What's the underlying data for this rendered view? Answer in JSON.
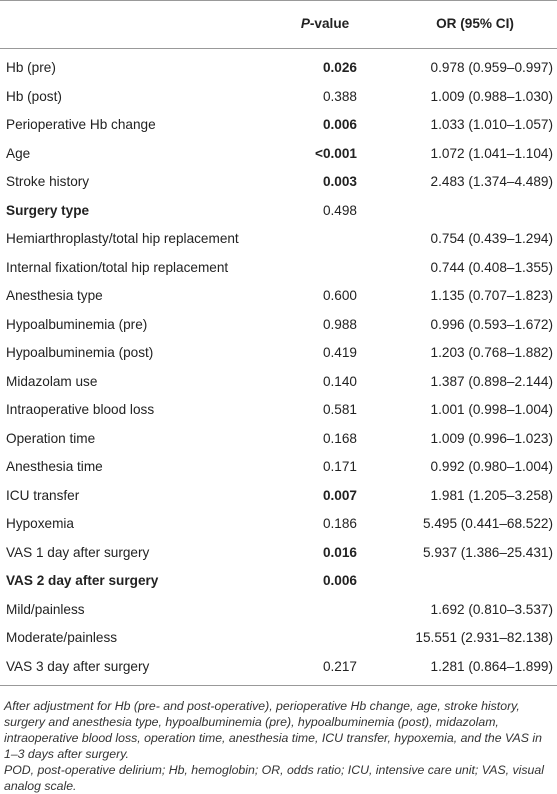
{
  "table": {
    "header": [
      "P-value",
      "OR (95% CI)"
    ],
    "rows": [
      {
        "label": "Hb (pre)",
        "p": "0.026",
        "p_bold": true,
        "or": "0.978 (0.959–0.997)"
      },
      {
        "label": "Hb (post)",
        "p": "0.388",
        "or": "1.009 (0.988–1.030)"
      },
      {
        "label": "Perioperative Hb change",
        "p": "0.006",
        "p_bold": true,
        "or": "1.033 (1.010–1.057)"
      },
      {
        "label": "Age",
        "p": "<0.001",
        "p_bold": true,
        "or": "1.072 (1.041–1.104)"
      },
      {
        "label": "Stroke history",
        "p": "0.003",
        "p_bold": true,
        "or": "2.483 (1.374–4.489)"
      },
      {
        "label": "Surgery type",
        "label_bold": true,
        "p": "0.498"
      },
      {
        "label": "Hemiarthroplasty/total hip replacement",
        "or": "0.754 (0.439–1.294)"
      },
      {
        "label": "Internal fixation/total hip replacement",
        "or": "0.744 (0.408–1.355)"
      },
      {
        "label": "Anesthesia type",
        "p": "0.600",
        "or": "1.135 (0.707–1.823)"
      },
      {
        "label": "Hypoalbuminemia (pre)",
        "p": "0.988",
        "or": "0.996 (0.593–1.672)"
      },
      {
        "label": "Hypoalbuminemia (post)",
        "p": "0.419",
        "or": "1.203 (0.768–1.882)"
      },
      {
        "label": "Midazolam use",
        "p": "0.140",
        "or": "1.387 (0.898–2.144)"
      },
      {
        "label": "Intraoperative blood loss",
        "p": "0.581",
        "or": "1.001 (0.998–1.004)"
      },
      {
        "label": "Operation time",
        "p": "0.168",
        "or": "1.009 (0.996–1.023)"
      },
      {
        "label": "Anesthesia time",
        "p": "0.171",
        "or": "0.992 (0.980–1.004)"
      },
      {
        "label": "ICU transfer",
        "p": "0.007",
        "p_bold": true,
        "or": "1.981 (1.205–3.258)"
      },
      {
        "label": "Hypoxemia",
        "p": "0.186",
        "or": "5.495 (0.441–68.522)"
      },
      {
        "label": "VAS 1 day after surgery",
        "p": "0.016",
        "p_bold": true,
        "or": "5.937 (1.386–25.431)"
      },
      {
        "label": "VAS 2 day after surgery",
        "label_bold": true,
        "p": "0.006",
        "p_bold": true
      },
      {
        "label": "Mild/painless",
        "or": "1.692 (0.810–3.537)"
      },
      {
        "label": "Moderate/painless",
        "or": "15.551 (2.931–82.138)"
      },
      {
        "label": "VAS 3 day after surgery",
        "p": "0.217",
        "or": "1.281 (0.864–1.899)"
      }
    ]
  },
  "notes": [
    "After adjustment for Hb (pre- and post-operative), perioperative Hb change, age, stroke history, surgery and anesthesia type, hypoalbuminemia (pre), hypoalbuminemia (post), midazolam, intraoperative blood loss, operation time, anesthesia time, ICU transfer, hypoxemia, and the VAS in 1–3 days after surgery.",
    "POD, post-operative delirium; Hb, hemoglobin; OR, odds ratio; ICU, intensive care unit; VAS, visual analog scale."
  ]
}
